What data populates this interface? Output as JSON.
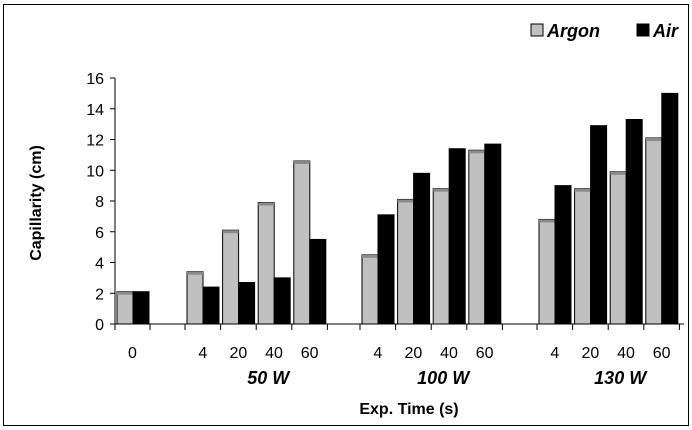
{
  "chart_data": {
    "type": "bar",
    "title": "",
    "xlabel": "Exp. Time (s)",
    "ylabel": "Capillarity (cm)",
    "ylim": [
      0,
      16
    ],
    "yticks": [
      "0",
      "2",
      "4",
      "6",
      "8",
      "10",
      "12",
      "14",
      "16"
    ],
    "legend_position": "top-right",
    "groups": [
      {
        "label": "",
        "categories": [
          "0"
        ]
      },
      {
        "label": "50 W",
        "categories": [
          "4",
          "20",
          "40",
          "60"
        ]
      },
      {
        "label": "100 W",
        "categories": [
          "4",
          "20",
          "40",
          "60"
        ]
      },
      {
        "label": "130 W",
        "categories": [
          "4",
          "20",
          "40",
          "60"
        ]
      }
    ],
    "series": [
      {
        "name": "Argon",
        "color": "#c0c0c0",
        "values": [
          2.1,
          3.4,
          6.1,
          7.9,
          10.6,
          4.5,
          8.1,
          8.8,
          11.3,
          6.8,
          8.8,
          9.9,
          12.1
        ]
      },
      {
        "name": "Air",
        "color": "#000000",
        "values": [
          2.1,
          2.4,
          2.7,
          3.0,
          5.5,
          7.1,
          9.8,
          11.4,
          11.7,
          9.0,
          12.9,
          13.3,
          15.0
        ]
      }
    ]
  }
}
